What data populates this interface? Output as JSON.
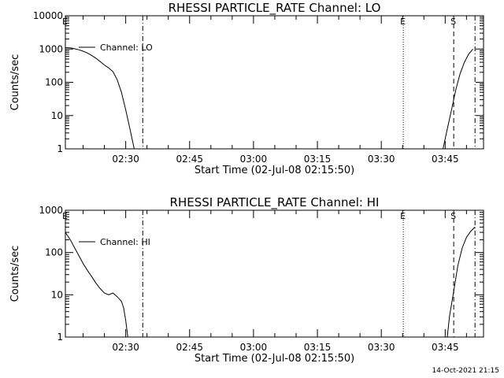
{
  "stamp": "14-Oct-2021 21:15",
  "chart_data": [
    {
      "type": "line",
      "title": "RHESSI PARTICLE_RATE Channel: LO",
      "xlabel": "Start Time (02-Jul-08 02:15:50)",
      "ylabel": "Counts/sec",
      "y_scale": "log",
      "ylim": [
        1,
        10000
      ],
      "yticks": [
        1,
        10,
        100,
        1000,
        10000
      ],
      "ytick_labels": [
        "1",
        "10",
        "100",
        "1000",
        "10000"
      ],
      "xlim": [
        "02:15:50",
        "03:54:00"
      ],
      "xticks": [
        "02:30",
        "02:45",
        "03:00",
        "03:15",
        "03:30",
        "03:45"
      ],
      "legend": {
        "label": "Channel: LO",
        "placement": "top-left"
      },
      "markers": [
        {
          "label": "E",
          "time": "02:15:50",
          "style": "dash-dot"
        },
        {
          "label": "",
          "time": "02:34:00",
          "style": "dash-dot"
        },
        {
          "label": "E",
          "time": "03:35:10",
          "style": "dotted"
        },
        {
          "label": "S",
          "time": "03:47:00",
          "style": "dashed"
        },
        {
          "label": "",
          "time": "03:52:00",
          "style": "dash-dot"
        }
      ],
      "series": [
        {
          "segments": [
            [
              [
                "02:15:50",
                1100
              ],
              [
                "02:17:00",
                1080
              ],
              [
                "02:18:00",
                1020
              ],
              [
                "02:19:00",
                950
              ],
              [
                "02:20:00",
                860
              ],
              [
                "02:21:00",
                760
              ],
              [
                "02:22:00",
                640
              ],
              [
                "02:23:00",
                530
              ],
              [
                "02:24:00",
                420
              ],
              [
                "02:25:00",
                330
              ],
              [
                "02:26:00",
                270
              ],
              [
                "02:27:00",
                210
              ],
              [
                "02:28:00",
                120
              ],
              [
                "02:29:00",
                50
              ],
              [
                "02:30:00",
                15
              ],
              [
                "02:31:00",
                4
              ],
              [
                "02:32:00",
                1
              ]
            ],
            [
              [
                "03:44:30",
                1
              ],
              [
                "03:45:30",
                4
              ],
              [
                "03:46:30",
                15
              ],
              [
                "03:47:30",
                60
              ],
              [
                "03:48:30",
                180
              ],
              [
                "03:49:30",
                400
              ],
              [
                "03:50:30",
                700
              ],
              [
                "03:51:30",
                1000
              ]
            ]
          ]
        }
      ]
    },
    {
      "type": "line",
      "title": "RHESSI PARTICLE_RATE Channel: HI",
      "xlabel": "Start Time (02-Jul-08 02:15:50)",
      "ylabel": "Counts/sec",
      "y_scale": "log",
      "ylim": [
        1,
        1000
      ],
      "yticks": [
        1,
        10,
        100,
        1000
      ],
      "ytick_labels": [
        "1",
        "10",
        "100",
        "1000"
      ],
      "xlim": [
        "02:15:50",
        "03:54:00"
      ],
      "xticks": [
        "02:30",
        "02:45",
        "03:00",
        "03:15",
        "03:30",
        "03:45"
      ],
      "legend": {
        "label": "Channel: HI",
        "placement": "top-left"
      },
      "markers": [
        {
          "label": "E",
          "time": "02:15:50",
          "style": "dash-dot"
        },
        {
          "label": "",
          "time": "02:34:00",
          "style": "dash-dot"
        },
        {
          "label": "E",
          "time": "03:35:10",
          "style": "dotted"
        },
        {
          "label": "S",
          "time": "03:47:00",
          "style": "dashed"
        },
        {
          "label": "",
          "time": "03:52:00",
          "style": "dash-dot"
        }
      ],
      "series": [
        {
          "segments": [
            [
              [
                "02:15:50",
                300
              ],
              [
                "02:17:00",
                200
              ],
              [
                "02:18:00",
                130
              ],
              [
                "02:19:00",
                85
              ],
              [
                "02:20:00",
                55
              ],
              [
                "02:21:00",
                38
              ],
              [
                "02:22:00",
                27
              ],
              [
                "02:23:00",
                19
              ],
              [
                "02:24:00",
                14
              ],
              [
                "02:25:00",
                11
              ],
              [
                "02:26:00",
                10
              ],
              [
                "02:27:00",
                11
              ],
              [
                "02:28:00",
                9
              ],
              [
                "02:29:00",
                7
              ],
              [
                "02:29:30",
                5
              ],
              [
                "02:30:00",
                2.5
              ],
              [
                "02:30:30",
                1
              ]
            ],
            [
              [
                "03:45:30",
                1
              ],
              [
                "03:46:00",
                3
              ],
              [
                "03:47:00",
                12
              ],
              [
                "03:48:00",
                50
              ],
              [
                "03:49:00",
                130
              ],
              [
                "03:50:00",
                230
              ],
              [
                "03:51:00",
                320
              ],
              [
                "03:52:00",
                400
              ]
            ]
          ]
        }
      ]
    }
  ]
}
